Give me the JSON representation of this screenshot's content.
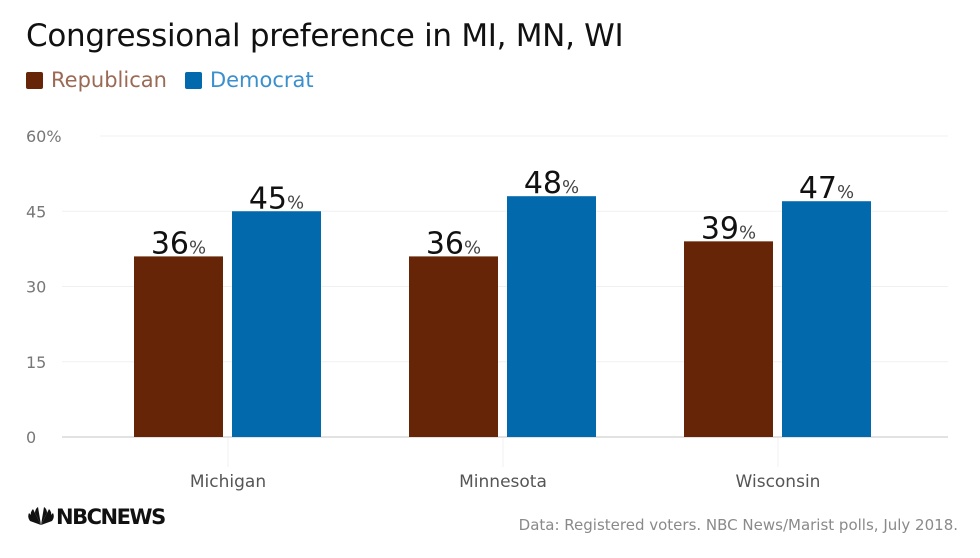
{
  "chart_data": {
    "type": "bar",
    "title": "Congressional preference in MI, MN, WI",
    "xlabel": "",
    "ylabel": "",
    "categories": [
      "Michigan",
      "Minnesota",
      "Wisconsin"
    ],
    "series": [
      {
        "name": "Republican",
        "color": "#662506",
        "values": [
          36,
          36,
          39
        ]
      },
      {
        "name": "Democrat",
        "color": "#0369AD",
        "values": [
          45,
          48,
          47
        ]
      }
    ],
    "value_suffix": "%",
    "ylim": [
      0,
      60
    ],
    "yticks": [
      0,
      15,
      30,
      45,
      60
    ],
    "ytick_labels": [
      "0",
      "15",
      "30",
      "45",
      "60%"
    ],
    "grid": true,
    "legend_position": "top-left"
  },
  "legend": {
    "items": [
      {
        "label": "Republican",
        "color": "#662506",
        "text_color": "#9a6a55"
      },
      {
        "label": "Democrat",
        "color": "#0369AD",
        "text_color": "#3a8fcc"
      }
    ]
  },
  "footer": {
    "brand": "NBCNEWS",
    "source": "Data: Registered voters. NBC News/Marist polls, July 2018."
  }
}
